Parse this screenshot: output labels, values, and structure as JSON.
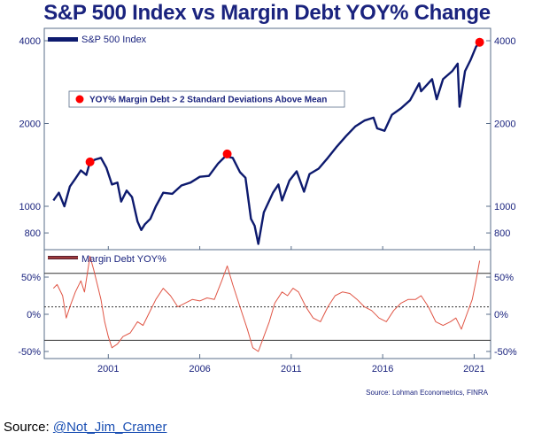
{
  "chart_data": {
    "type": "line",
    "title": "S&P 500 Index vs Margin Debt YOY% Change",
    "x_ticks": [
      "2001",
      "2006",
      "2011",
      "2016",
      "2021"
    ],
    "top_panel": {
      "scale": "log",
      "y_ticks": [
        "4000",
        "2000",
        "1000",
        "800"
      ],
      "series": [
        {
          "name": "S&P 500 Index",
          "color": "#0d1a6e",
          "points": [
            [
              1998.0,
              1050
            ],
            [
              1998.3,
              1120
            ],
            [
              1998.6,
              1000
            ],
            [
              1998.9,
              1180
            ],
            [
              1999.2,
              1260
            ],
            [
              1999.5,
              1350
            ],
            [
              1999.8,
              1300
            ],
            [
              2000.0,
              1450
            ],
            [
              2000.3,
              1480
            ],
            [
              2000.6,
              1500
            ],
            [
              2000.9,
              1380
            ],
            [
              2001.2,
              1200
            ],
            [
              2001.5,
              1220
            ],
            [
              2001.7,
              1040
            ],
            [
              2002.0,
              1140
            ],
            [
              2002.3,
              1080
            ],
            [
              2002.6,
              880
            ],
            [
              2002.8,
              820
            ],
            [
              2003.0,
              860
            ],
            [
              2003.3,
              900
            ],
            [
              2003.6,
              1000
            ],
            [
              2004.0,
              1120
            ],
            [
              2004.5,
              1110
            ],
            [
              2005.0,
              1190
            ],
            [
              2005.5,
              1220
            ],
            [
              2006.0,
              1280
            ],
            [
              2006.5,
              1290
            ],
            [
              2007.0,
              1430
            ],
            [
              2007.4,
              1520
            ],
            [
              2007.8,
              1500
            ],
            [
              2008.2,
              1330
            ],
            [
              2008.5,
              1270
            ],
            [
              2008.8,
              900
            ],
            [
              2009.0,
              850
            ],
            [
              2009.2,
              730
            ],
            [
              2009.5,
              950
            ],
            [
              2010.0,
              1120
            ],
            [
              2010.3,
              1200
            ],
            [
              2010.5,
              1050
            ],
            [
              2010.9,
              1240
            ],
            [
              2011.3,
              1340
            ],
            [
              2011.7,
              1130
            ],
            [
              2012.0,
              1310
            ],
            [
              2012.5,
              1370
            ],
            [
              2013.0,
              1500
            ],
            [
              2013.5,
              1650
            ],
            [
              2014.0,
              1800
            ],
            [
              2014.5,
              1950
            ],
            [
              2015.0,
              2050
            ],
            [
              2015.5,
              2100
            ],
            [
              2015.7,
              1920
            ],
            [
              2016.1,
              1880
            ],
            [
              2016.5,
              2150
            ],
            [
              2017.0,
              2270
            ],
            [
              2017.5,
              2430
            ],
            [
              2018.0,
              2800
            ],
            [
              2018.1,
              2620
            ],
            [
              2018.7,
              2900
            ],
            [
              2018.95,
              2450
            ],
            [
              2019.3,
              2900
            ],
            [
              2019.8,
              3100
            ],
            [
              2020.1,
              3300
            ],
            [
              2020.2,
              2300
            ],
            [
              2020.5,
              3100
            ],
            [
              2020.8,
              3400
            ],
            [
              2021.1,
              3800
            ],
            [
              2021.3,
              3950
            ]
          ]
        }
      ],
      "highlights": [
        {
          "x": 2000.0,
          "y": 1450
        },
        {
          "x": 2007.5,
          "y": 1550
        },
        {
          "x": 2021.3,
          "y": 3950
        }
      ],
      "highlight_color": "#ff0000",
      "callout": "YOY% Margin Debt > 2 Standard Deviations Above Mean"
    },
    "bottom_panel": {
      "y_ticks": [
        "50%",
        "0%",
        "-50%"
      ],
      "reference_lines": [
        {
          "value": 55,
          "style": "solid"
        },
        {
          "value": 10,
          "style": "dashed"
        },
        {
          "value": -35,
          "style": "solid"
        }
      ],
      "series": [
        {
          "name": "Margin Debt YOY%",
          "color": "#e05545",
          "points": [
            [
              1998.0,
              35
            ],
            [
              1998.2,
              40
            ],
            [
              1998.5,
              25
            ],
            [
              1998.7,
              -5
            ],
            [
              1998.9,
              10
            ],
            [
              1999.2,
              30
            ],
            [
              1999.5,
              45
            ],
            [
              1999.7,
              30
            ],
            [
              2000.0,
              78
            ],
            [
              2000.2,
              60
            ],
            [
              2000.4,
              40
            ],
            [
              2000.6,
              20
            ],
            [
              2000.8,
              -10
            ],
            [
              2001.0,
              -30
            ],
            [
              2001.2,
              -45
            ],
            [
              2001.5,
              -40
            ],
            [
              2001.8,
              -30
            ],
            [
              2002.2,
              -25
            ],
            [
              2002.6,
              -10
            ],
            [
              2002.9,
              -15
            ],
            [
              2003.2,
              0
            ],
            [
              2003.6,
              20
            ],
            [
              2004.0,
              35
            ],
            [
              2004.4,
              25
            ],
            [
              2004.8,
              10
            ],
            [
              2005.2,
              15
            ],
            [
              2005.6,
              20
            ],
            [
              2006.0,
              18
            ],
            [
              2006.4,
              22
            ],
            [
              2006.8,
              20
            ],
            [
              2007.2,
              45
            ],
            [
              2007.5,
              65
            ],
            [
              2007.8,
              40
            ],
            [
              2008.2,
              10
            ],
            [
              2008.6,
              -20
            ],
            [
              2008.9,
              -45
            ],
            [
              2009.2,
              -50
            ],
            [
              2009.5,
              -30
            ],
            [
              2009.8,
              -10
            ],
            [
              2010.1,
              15
            ],
            [
              2010.5,
              30
            ],
            [
              2010.8,
              25
            ],
            [
              2011.1,
              35
            ],
            [
              2011.4,
              30
            ],
            [
              2011.8,
              10
            ],
            [
              2012.2,
              -5
            ],
            [
              2012.6,
              -10
            ],
            [
              2013.0,
              10
            ],
            [
              2013.4,
              25
            ],
            [
              2013.8,
              30
            ],
            [
              2014.2,
              28
            ],
            [
              2014.6,
              20
            ],
            [
              2015.0,
              10
            ],
            [
              2015.4,
              5
            ],
            [
              2015.8,
              -5
            ],
            [
              2016.2,
              -10
            ],
            [
              2016.6,
              5
            ],
            [
              2017.0,
              15
            ],
            [
              2017.4,
              20
            ],
            [
              2017.8,
              20
            ],
            [
              2018.1,
              25
            ],
            [
              2018.5,
              10
            ],
            [
              2018.9,
              -10
            ],
            [
              2019.3,
              -15
            ],
            [
              2019.7,
              -10
            ],
            [
              2020.0,
              -5
            ],
            [
              2020.3,
              -20
            ],
            [
              2020.6,
              0
            ],
            [
              2020.9,
              20
            ],
            [
              2021.1,
              45
            ],
            [
              2021.3,
              72
            ]
          ]
        }
      ]
    },
    "credit": "Source: Lohman Econometrics, FINRA",
    "grid": false
  },
  "footer": {
    "prefix": "Source: ",
    "link": "@Not_Jim_Cramer"
  }
}
